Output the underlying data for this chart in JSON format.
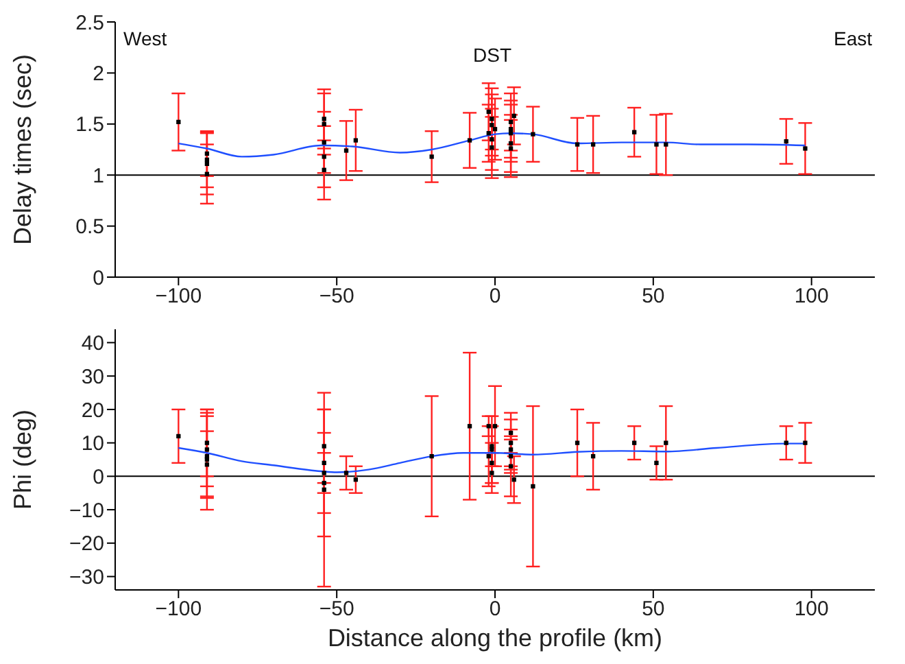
{
  "chart_data": [
    {
      "type": "scatter",
      "ylabel": "Delay times (sec)",
      "xlim": [
        -120,
        120
      ],
      "xticks": [
        -100,
        -50,
        0,
        50,
        100
      ],
      "ylim": [
        0,
        2.5
      ],
      "yticks": [
        0,
        0.5,
        1,
        1.5,
        2,
        2.5
      ],
      "grid": false,
      "legend": false,
      "annotations": [
        "West",
        "DST",
        "East"
      ],
      "ref_lines": [
        {
          "axis": "y",
          "value": 1,
          "color": "#000000"
        }
      ],
      "series": [
        {
          "color": "#000000",
          "marker": "square",
          "x": [
            -100,
            -91,
            -91,
            -91,
            -91,
            -54,
            -54,
            -54,
            -54,
            -54,
            -47,
            -44,
            -20,
            -8,
            -2,
            -2,
            -1,
            -1,
            -1,
            -1,
            0,
            5,
            5,
            5,
            5,
            5,
            6,
            12,
            26,
            31,
            44,
            51,
            54,
            92,
            98
          ],
          "values": [
            1.52,
            1.21,
            1.15,
            1.11,
            1.01,
            1.55,
            1.5,
            1.32,
            1.18,
            1.05,
            1.24,
            1.34,
            1.18,
            1.34,
            1.62,
            1.41,
            1.55,
            1.49,
            1.35,
            1.27,
            1.45,
            1.52,
            1.45,
            1.41,
            1.31,
            1.26,
            1.58,
            1.4,
            1.3,
            1.3,
            1.42,
            1.3,
            1.3,
            1.33,
            1.26
          ],
          "errors": [
            0.28,
            0.22,
            0.27,
            0.3,
            0.29,
            0.29,
            0.3,
            0.3,
            0.3,
            0.29,
            0.29,
            0.3,
            0.25,
            0.27,
            0.28,
            0.28,
            0.3,
            0.3,
            0.3,
            0.3,
            0.3,
            0.28,
            0.28,
            0.28,
            0.28,
            0.28,
            0.28,
            0.27,
            0.26,
            0.28,
            0.24,
            0.29,
            0.3,
            0.22,
            0.25
          ]
        },
        {
          "type": "line",
          "color": "#1f4fff",
          "marker": "none",
          "line_style": "solid",
          "x": [
            -100,
            -91,
            -80,
            -70,
            -55,
            -45,
            -30,
            -20,
            -8,
            0,
            5,
            12,
            26,
            40,
            54,
            65,
            80,
            98
          ],
          "values": [
            1.31,
            1.26,
            1.18,
            1.2,
            1.29,
            1.28,
            1.22,
            1.25,
            1.34,
            1.4,
            1.41,
            1.4,
            1.31,
            1.32,
            1.32,
            1.3,
            1.3,
            1.29
          ]
        }
      ]
    },
    {
      "type": "scatter",
      "ylabel": "Phi (deg)",
      "xlabel": "Distance along the profile (km)",
      "xlim": [
        -120,
        120
      ],
      "xticks": [
        -100,
        -50,
        0,
        50,
        100
      ],
      "ylim": [
        -34,
        44
      ],
      "yticks": [
        -30,
        -20,
        -10,
        0,
        10,
        20,
        30,
        40
      ],
      "grid": false,
      "legend": false,
      "ref_lines": [
        {
          "axis": "y",
          "value": 0,
          "color": "#000000"
        }
      ],
      "series": [
        {
          "color": "#000000",
          "marker": "square",
          "x": [
            -100,
            -91,
            -91,
            -91,
            -91,
            -91,
            -54,
            -54,
            -54,
            -54,
            -54,
            -47,
            -44,
            -20,
            -8,
            -2,
            -2,
            -1,
            -1,
            -1,
            -1,
            0,
            5,
            5,
            5,
            5,
            5,
            6,
            12,
            26,
            31,
            44,
            51,
            54,
            92,
            98
          ],
          "values": [
            12,
            10,
            8,
            6,
            5,
            3.5,
            9,
            4,
            1,
            -2,
            -4,
            1,
            -1,
            6,
            15,
            15,
            6,
            9,
            8,
            4,
            1,
            15,
            13,
            10,
            8,
            6,
            3,
            -1,
            -3,
            10,
            6,
            10,
            4,
            10,
            10,
            10
          ],
          "errors": [
            8,
            10,
            11,
            12,
            15,
            10,
            11,
            9,
            19,
            9,
            29,
            5,
            4,
            18,
            22,
            3,
            9,
            6,
            10,
            6,
            6,
            12,
            6,
            7,
            6,
            5,
            9,
            7,
            24,
            10,
            10,
            5,
            5,
            11,
            5,
            6
          ]
        },
        {
          "type": "line",
          "color": "#1f4fff",
          "marker": "none",
          "line_style": "solid",
          "x": [
            -100,
            -91,
            -80,
            -70,
            -55,
            -50,
            -40,
            -30,
            -20,
            -10,
            0,
            12,
            26,
            40,
            54,
            70,
            92,
            98
          ],
          "values": [
            8.5,
            7,
            4.5,
            3.3,
            1.5,
            1.2,
            2,
            4,
            6,
            7,
            7,
            6.5,
            7.3,
            7.6,
            7.4,
            8.5,
            9.8,
            9.8
          ]
        }
      ]
    }
  ]
}
